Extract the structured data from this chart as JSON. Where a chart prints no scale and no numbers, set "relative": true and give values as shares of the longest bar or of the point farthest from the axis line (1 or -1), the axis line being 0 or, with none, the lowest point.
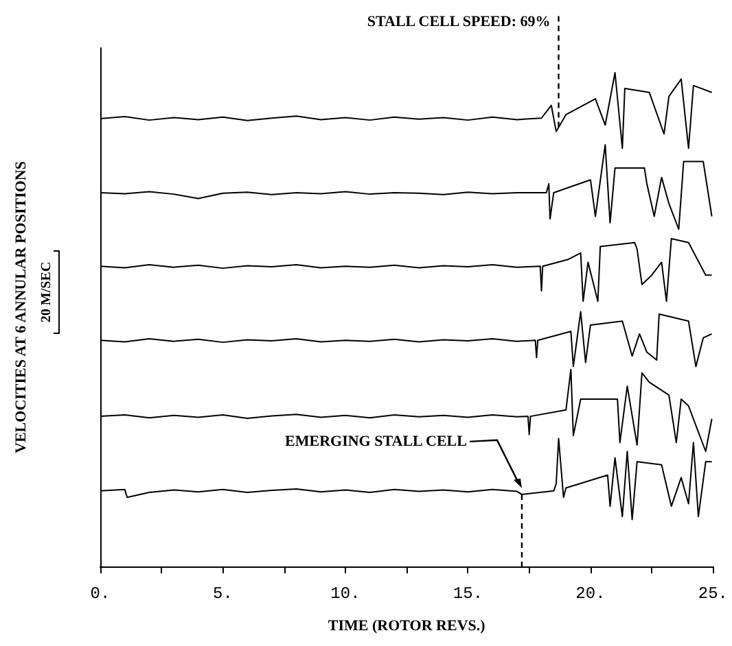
{
  "chart_data": {
    "type": "line",
    "relative": true,
    "xlabel": "TIME (ROTOR REVS.)",
    "ylabel": "VELOCITIES AT 6 ANNULAR POSITIONS",
    "xlim": [
      0,
      25
    ],
    "xticks": [
      {
        "value": 0,
        "label": "0."
      },
      {
        "value": 2.5,
        "label": null
      },
      {
        "value": 5,
        "label": "5."
      },
      {
        "value": 7.5,
        "label": null
      },
      {
        "value": 10,
        "label": "10."
      },
      {
        "value": 12.5,
        "label": null
      },
      {
        "value": 15,
        "label": "15."
      },
      {
        "value": 17.5,
        "label": null
      },
      {
        "value": 20,
        "label": "20."
      },
      {
        "value": 22.5,
        "label": null
      },
      {
        "value": 25,
        "label": "25."
      }
    ],
    "marker": "none",
    "line_style": "solid",
    "annotations": [
      "STALL CELL SPEED: 69%",
      {
        "text": "EMERGING STALL CELL",
        "x": 17.2,
        "y": 0.153
      },
      "20 M/SEC"
    ],
    "ref_lines": [
      {
        "axis": "x",
        "value": 18.7,
        "line_style": "dashed"
      },
      {
        "axis": "x",
        "value": 17.2,
        "line_style": "dashed"
      }
    ],
    "series": [
      {
        "color": "#000000",
        "x": [
          0,
          1,
          2,
          3,
          4,
          5,
          6,
          7,
          8,
          9,
          10,
          11,
          12,
          13,
          14,
          15,
          16,
          17,
          18,
          18.4,
          18.6,
          19,
          20.2,
          20.6,
          21,
          21.3,
          21.4,
          22.4,
          23,
          23.2,
          23.7,
          24,
          24.2,
          24.95
        ],
        "values": [
          0.907,
          0.911,
          0.904,
          0.909,
          0.905,
          0.91,
          0.903,
          0.908,
          0.912,
          0.905,
          0.909,
          0.904,
          0.91,
          0.906,
          0.909,
          0.904,
          0.91,
          0.905,
          0.908,
          0.934,
          0.881,
          0.915,
          0.947,
          0.894,
          1.0,
          0.847,
          0.968,
          0.96,
          0.876,
          0.952,
          0.987,
          0.847,
          0.974,
          0.96
        ]
      },
      {
        "color": "#000000",
        "x": [
          0,
          1,
          2,
          3,
          4,
          5,
          6,
          7,
          8,
          9,
          10,
          11,
          12,
          13,
          14,
          15,
          16,
          17,
          18.2,
          18.3,
          18.35,
          18.5,
          20,
          20.2,
          20.6,
          20.8,
          21,
          22.2,
          22.3,
          22.6,
          22.9,
          23.2,
          23.6,
          23.8,
          24.6,
          24.95
        ],
        "values": [
          0.757,
          0.755,
          0.759,
          0.754,
          0.745,
          0.756,
          0.758,
          0.753,
          0.757,
          0.755,
          0.759,
          0.754,
          0.757,
          0.756,
          0.753,
          0.758,
          0.755,
          0.757,
          0.757,
          0.775,
          0.704,
          0.757,
          0.783,
          0.709,
          0.854,
          0.696,
          0.807,
          0.807,
          0.775,
          0.709,
          0.788,
          0.735,
          0.683,
          0.82,
          0.82,
          0.709
        ]
      },
      {
        "color": "#000000",
        "x": [
          0,
          1,
          2,
          3,
          4,
          5,
          6,
          7,
          8,
          9,
          10,
          11,
          12,
          13,
          14,
          15,
          16,
          17,
          17.95,
          18,
          18.05,
          19.1,
          19.6,
          19.7,
          19.9,
          20.3,
          20.4,
          21.8,
          21.9,
          22.1,
          22.5,
          22.9,
          23.1,
          23.3,
          24,
          24.7,
          24.95
        ],
        "values": [
          0.608,
          0.605,
          0.611,
          0.606,
          0.61,
          0.604,
          0.609,
          0.607,
          0.611,
          0.605,
          0.608,
          0.606,
          0.61,
          0.605,
          0.609,
          0.607,
          0.611,
          0.606,
          0.608,
          0.558,
          0.608,
          0.622,
          0.635,
          0.537,
          0.616,
          0.537,
          0.648,
          0.656,
          0.643,
          0.571,
          0.59,
          0.616,
          0.537,
          0.664,
          0.656,
          0.59,
          0.59
        ]
      },
      {
        "color": "#000000",
        "x": [
          0,
          1,
          2,
          3,
          4,
          5,
          6,
          7,
          8,
          9,
          10,
          11,
          12,
          13,
          14,
          15,
          16,
          17,
          17.75,
          17.8,
          17.85,
          19.2,
          19.3,
          19.6,
          19.8,
          20,
          21.3,
          21.7,
          22,
          22.3,
          22.7,
          22.8,
          24,
          24.3,
          24.6,
          24.95
        ],
        "values": [
          0.458,
          0.455,
          0.461,
          0.456,
          0.46,
          0.454,
          0.459,
          0.457,
          0.461,
          0.455,
          0.458,
          0.456,
          0.46,
          0.455,
          0.459,
          0.457,
          0.461,
          0.456,
          0.458,
          0.423,
          0.458,
          0.476,
          0.405,
          0.516,
          0.413,
          0.489,
          0.497,
          0.426,
          0.471,
          0.434,
          0.418,
          0.511,
          0.497,
          0.405,
          0.463,
          0.471
        ]
      },
      {
        "color": "#000000",
        "x": [
          0,
          1,
          2,
          3,
          4,
          5,
          6,
          7,
          8,
          9,
          10,
          11,
          12,
          13,
          14,
          15,
          16,
          17,
          17.45,
          17.5,
          17.55,
          19,
          19.2,
          19.3,
          19.6,
          21.1,
          21.2,
          21.5,
          21.9,
          22.1,
          22.4,
          23.2,
          23.5,
          23.7,
          24,
          24.7,
          24.95
        ],
        "values": [
          0.304,
          0.307,
          0.301,
          0.306,
          0.302,
          0.307,
          0.3,
          0.305,
          0.308,
          0.302,
          0.306,
          0.301,
          0.307,
          0.303,
          0.306,
          0.302,
          0.307,
          0.303,
          0.304,
          0.267,
          0.304,
          0.317,
          0.399,
          0.265,
          0.339,
          0.339,
          0.251,
          0.365,
          0.246,
          0.392,
          0.373,
          0.347,
          0.251,
          0.339,
          0.325,
          0.233,
          0.299
        ]
      },
      {
        "color": "#000000",
        "x": [
          0,
          1,
          1.1,
          2,
          3,
          4,
          5,
          6,
          7,
          8,
          9,
          10,
          11,
          12,
          13,
          14,
          15,
          16,
          17,
          17.2,
          18.5,
          18.6,
          18.7,
          18.9,
          19,
          20.7,
          20.8,
          21,
          21.3,
          21.5,
          21.7,
          21.9,
          22.9,
          23.3,
          23.7,
          24,
          24.2,
          24.4,
          24.7,
          24.95
        ],
        "values": [
          0.153,
          0.156,
          0.14,
          0.15,
          0.155,
          0.151,
          0.156,
          0.15,
          0.154,
          0.157,
          0.151,
          0.155,
          0.15,
          0.156,
          0.152,
          0.155,
          0.151,
          0.156,
          0.152,
          0.146,
          0.153,
          0.167,
          0.259,
          0.14,
          0.159,
          0.185,
          0.122,
          0.22,
          0.101,
          0.233,
          0.095,
          0.212,
          0.206,
          0.122,
          0.18,
          0.127,
          0.251,
          0.101,
          0.212,
          0.212
        ]
      }
    ]
  }
}
